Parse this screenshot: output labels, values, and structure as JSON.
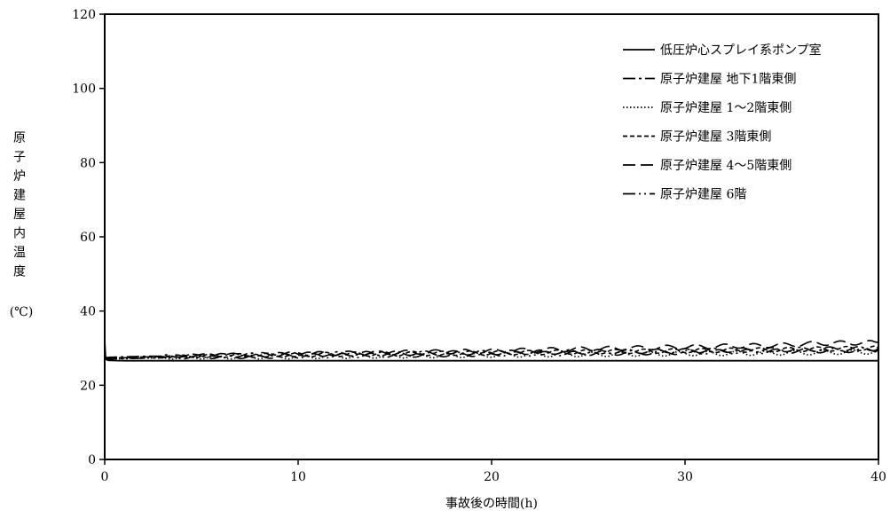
{
  "chart_data": {
    "type": "line",
    "xlabel": "事故後の時間(h)",
    "ylabel_chars": [
      "原",
      "子",
      "炉",
      "建",
      "屋",
      "内",
      "温",
      "度"
    ],
    "ylabel_unit": "(℃)",
    "xlim": [
      0,
      40
    ],
    "ylim": [
      0,
      120
    ],
    "xticks": [
      0,
      10,
      20,
      30,
      40
    ],
    "yticks": [
      0,
      20,
      40,
      60,
      80,
      100,
      120
    ],
    "grid": false,
    "legend_position": "top-right",
    "series": [
      {
        "name": "低圧炉心スプレイ系ポンプ室",
        "style": "solid",
        "x": [
          0,
          0.05,
          0.2,
          1,
          5,
          10,
          20,
          30,
          40
        ],
        "y": [
          32,
          27,
          26.7,
          26.6,
          26.6,
          26.6,
          26.6,
          26.6,
          26.6
        ]
      },
      {
        "name": "原子炉建屋 地下1階東側",
        "style": "dashdot",
        "x": [
          0,
          2,
          5,
          10,
          15,
          20,
          25,
          30,
          35,
          40
        ],
        "y": [
          27.5,
          27.8,
          28.0,
          28.3,
          28.6,
          28.8,
          29.0,
          29.3,
          29.6,
          29.9
        ]
      },
      {
        "name": "原子炉建屋 1～2階東側",
        "style": "dotted",
        "x": [
          0,
          2,
          5,
          10,
          15,
          20,
          25,
          30,
          35,
          40
        ],
        "y": [
          27.0,
          27.3,
          27.5,
          27.7,
          27.9,
          28.1,
          28.3,
          28.5,
          28.7,
          29.0
        ]
      },
      {
        "name": "原子炉建屋 3階東側",
        "style": "dashed",
        "x": [
          0,
          2,
          5,
          10,
          15,
          20,
          25,
          30,
          35,
          40
        ],
        "y": [
          27.3,
          27.6,
          27.9,
          28.2,
          28.5,
          28.7,
          29.0,
          29.3,
          29.6,
          30.0
        ]
      },
      {
        "name": "原子炉建屋 4～5階東側",
        "style": "longdash",
        "x": [
          0,
          2,
          5,
          10,
          15,
          20,
          25,
          30,
          35,
          37,
          40
        ],
        "y": [
          27.2,
          27.6,
          28.0,
          28.4,
          28.8,
          29.2,
          29.8,
          30.3,
          30.8,
          31.3,
          31.5
        ]
      },
      {
        "name": "原子炉建屋 6階",
        "style": "dashdotdot",
        "x": [
          0,
          2,
          5,
          10,
          15,
          20,
          25,
          30,
          35,
          40
        ],
        "y": [
          27.0,
          27.3,
          27.6,
          27.9,
          28.1,
          28.4,
          28.6,
          28.9,
          29.2,
          29.5
        ]
      }
    ]
  }
}
